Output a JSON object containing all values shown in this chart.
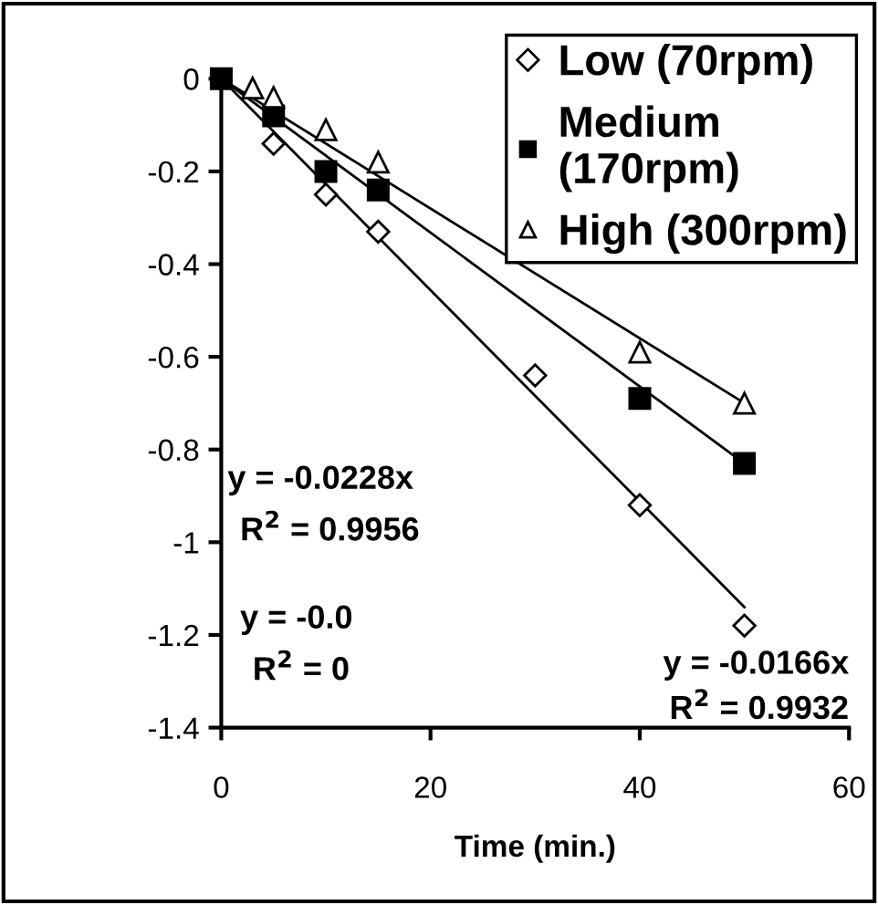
{
  "chart_data": {
    "type": "scatter",
    "xlabel": "Time (min.)",
    "xlim": [
      0,
      60
    ],
    "xticks": [
      0,
      20,
      40,
      60
    ],
    "ylim": [
      -1.4,
      0
    ],
    "yticks": [
      0,
      -0.2,
      -0.4,
      -0.6,
      -0.8,
      -1,
      -1.2,
      -1.4
    ],
    "grid": false,
    "legend": "top right",
    "series": [
      {
        "name": "Low (70rpm)",
        "color": "#000000",
        "marker": "diamond",
        "x": [
          5,
          10,
          15,
          30,
          40,
          50
        ],
        "values": [
          -0.14,
          -0.25,
          -0.33,
          -0.64,
          -0.92,
          -1.18
        ]
      },
      {
        "name": "Medium (170rpm)",
        "color": "#000000",
        "marker": "square",
        "x": [
          0,
          5,
          10,
          15,
          40,
          50
        ],
        "values": [
          0,
          -0.08,
          -0.2,
          -0.24,
          -0.69,
          -0.83
        ]
      },
      {
        "name": "High (300rpm)",
        "color": "#000000",
        "marker": "triangle",
        "x": [
          3,
          5,
          10,
          15,
          40,
          50
        ],
        "values": [
          -0.02,
          -0.04,
          -0.11,
          -0.18,
          -0.59,
          -0.7
        ]
      },
      {
        "type": "line",
        "color": "#000000",
        "x": [
          0,
          50
        ],
        "values": [
          0,
          -1.14
        ]
      },
      {
        "type": "line",
        "color": "#000000",
        "x": [
          0,
          50
        ],
        "values": [
          0,
          -0.83
        ]
      },
      {
        "type": "line",
        "color": "#000000",
        "x": [
          0,
          50
        ],
        "values": [
          0,
          -0.7
        ]
      }
    ],
    "annotations": [
      "y = -0.0228x",
      "R$^{2}$ = 0.9956",
      "y = -0.0166x",
      "R$^{2}$ = 0.9932",
      "y = -0.0",
      "R$^{2}$ = 0"
    ]
  }
}
